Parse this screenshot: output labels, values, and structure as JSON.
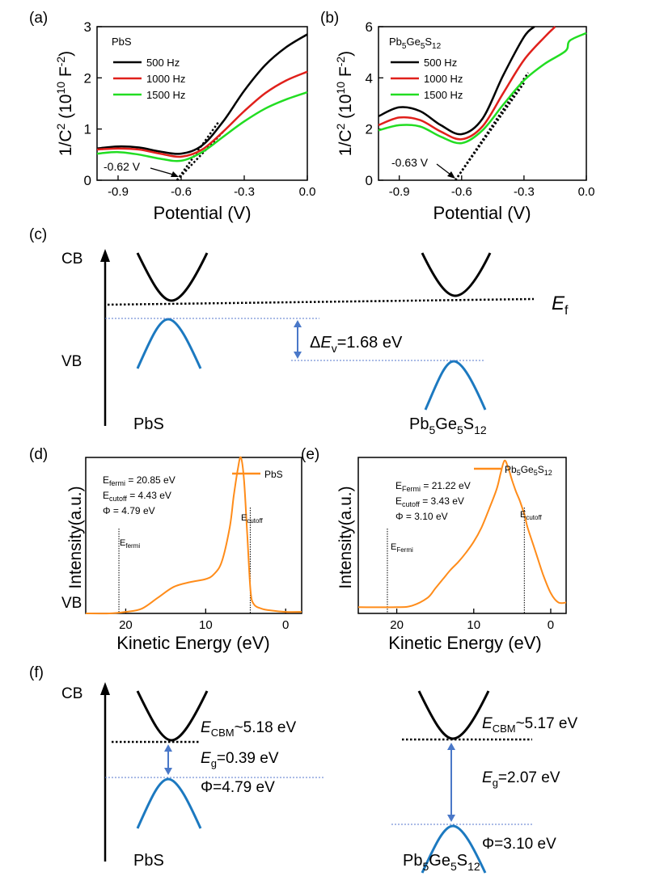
{
  "colors": {
    "c500": "#000000",
    "c1000": "#e0201b",
    "c1500": "#22dd22",
    "band_vb": "#1c79c0",
    "arrow": "#4a78c8",
    "guide": "#5577cc",
    "ups": "#ff8c1a"
  },
  "panels": {
    "a": {
      "tag": "(a)",
      "material": "PbS",
      "annotation": "-0.62 V"
    },
    "b": {
      "tag": "(b)",
      "annotation": "-0.63 V"
    },
    "c": {
      "tag": "(c)"
    },
    "d": {
      "tag": "(d)",
      "legend": "PbS"
    },
    "e": {
      "tag": "(e)"
    },
    "f": {
      "tag": "(f)"
    }
  },
  "mott_axes": {
    "ylabel": "1/C² (10¹⁰ F⁻²)",
    "xlabel": "Potential (V)",
    "legend": [
      "500 Hz",
      "1000 Hz",
      "1500 Hz"
    ]
  },
  "ups_axes": {
    "ylabel": "Intensity(a.u.)",
    "xlabel": "Kinetic Energy (eV)"
  },
  "band_c": {
    "cb": "CB",
    "vb": "VB",
    "left_material": "PbS",
    "right_material_note": "Pb5Ge5S12",
    "dEv_value": "=1.68 eV"
  },
  "band_f": {
    "cb": "CB",
    "vb": "VB",
    "left": {
      "material": "PbS",
      "ecbm": "~5.18 eV",
      "eg": "=0.39 eV",
      "phi": "Φ=4.79 eV"
    },
    "right": {
      "ecbm": "~5.17 eV",
      "eg": "=2.07 eV",
      "phi": "Φ=3.10 eV"
    }
  },
  "ups_text": {
    "d": {
      "efermi": " = 20.85 eV",
      "ecutoff": " = 4.43 eV",
      "phi": "Φ = 4.79 eV"
    },
    "e": {
      "efermi": " = 21.22 eV",
      "ecutoff": " = 3.43 eV",
      "phi": "Φ = 3.10 eV"
    }
  },
  "chart_data": [
    {
      "panel": "a",
      "type": "line",
      "xlabel": "Potential (V)",
      "ylabel": "1/C2 (10^10 F^-2)",
      "xlim": [
        -1.0,
        0.0
      ],
      "ylim": [
        0,
        3
      ],
      "xticks": [
        -0.9,
        -0.6,
        -0.3,
        0.0
      ],
      "yticks": [
        0,
        1,
        2,
        3
      ],
      "annotation": "-0.62 V",
      "series": [
        {
          "name": "500 Hz",
          "x": [
            -1.0,
            -0.9,
            -0.8,
            -0.7,
            -0.6,
            -0.5,
            -0.4,
            -0.3,
            -0.2,
            -0.1,
            0.0
          ],
          "y": [
            0.62,
            0.66,
            0.64,
            0.56,
            0.52,
            0.68,
            1.15,
            1.75,
            2.25,
            2.6,
            2.85
          ]
        },
        {
          "name": "1000 Hz",
          "x": [
            -1.0,
            -0.9,
            -0.8,
            -0.7,
            -0.6,
            -0.5,
            -0.4,
            -0.3,
            -0.2,
            -0.1,
            0.0
          ],
          "y": [
            0.6,
            0.62,
            0.6,
            0.52,
            0.46,
            0.6,
            0.95,
            1.35,
            1.7,
            1.95,
            2.12
          ]
        },
        {
          "name": "1500 Hz",
          "x": [
            -1.0,
            -0.9,
            -0.8,
            -0.7,
            -0.6,
            -0.5,
            -0.4,
            -0.3,
            -0.2,
            -0.1,
            0.0
          ],
          "y": [
            0.52,
            0.55,
            0.5,
            0.42,
            0.38,
            0.55,
            0.85,
            1.15,
            1.4,
            1.58,
            1.72
          ]
        }
      ],
      "fits": [
        {
          "x": [
            -0.62,
            -0.42
          ],
          "y": [
            0,
            1.15
          ]
        },
        {
          "x": [
            -0.62,
            -0.4
          ],
          "y": [
            0,
            0.95
          ]
        }
      ]
    },
    {
      "panel": "b",
      "type": "line",
      "xlabel": "Potential (V)",
      "ylabel": "1/C2 (10^10 F^-2)",
      "xlim": [
        -1.0,
        0.0
      ],
      "ylim": [
        0,
        6
      ],
      "xticks": [
        -0.9,
        -0.6,
        -0.3,
        0.0
      ],
      "yticks": [
        0,
        2,
        4,
        6
      ],
      "annotation": "-0.63 V",
      "series": [
        {
          "name": "500 Hz",
          "x": [
            -1.0,
            -0.9,
            -0.8,
            -0.7,
            -0.6,
            -0.5,
            -0.4,
            -0.3,
            -0.25
          ],
          "y": [
            2.5,
            2.85,
            2.7,
            2.15,
            1.8,
            2.4,
            4.1,
            5.6,
            6.0
          ]
        },
        {
          "name": "1000 Hz",
          "x": [
            -1.0,
            -0.9,
            -0.8,
            -0.7,
            -0.6,
            -0.5,
            -0.4,
            -0.3,
            -0.2,
            -0.15
          ],
          "y": [
            2.15,
            2.45,
            2.35,
            1.9,
            1.6,
            2.1,
            3.4,
            4.7,
            5.6,
            6.0
          ]
        },
        {
          "name": "1500 Hz",
          "x": [
            -1.0,
            -0.9,
            -0.8,
            -0.7,
            -0.6,
            -0.5,
            -0.4,
            -0.3,
            -0.2,
            -0.1,
            -0.08,
            0.0
          ],
          "y": [
            1.95,
            2.15,
            2.1,
            1.7,
            1.45,
            1.95,
            2.95,
            3.9,
            4.55,
            5.05,
            5.45,
            5.75
          ]
        }
      ],
      "fits": [
        {
          "x": [
            -0.63,
            -0.28
          ],
          "y": [
            0,
            4.2
          ]
        },
        {
          "x": [
            -0.63,
            -0.3
          ],
          "y": [
            0,
            3.8
          ]
        }
      ]
    },
    {
      "panel": "d",
      "type": "line",
      "xlabel": "Kinetic Energy (eV)",
      "ylabel": "Intensity(a.u.)",
      "xlim": [
        25,
        -2
      ],
      "xticks": [
        20,
        10,
        0
      ],
      "ylim": [
        0,
        1
      ],
      "series": [
        {
          "name": "PbS",
          "x": [
            25,
            22,
            20,
            18,
            16,
            14,
            12,
            10,
            9,
            8,
            7,
            6.5,
            6,
            5.6,
            5.2,
            4.8,
            4.4,
            4,
            3,
            2,
            0,
            -2
          ],
          "y": [
            0.0,
            0.0,
            0.01,
            0.03,
            0.1,
            0.17,
            0.2,
            0.22,
            0.25,
            0.33,
            0.55,
            0.75,
            0.92,
            1.0,
            0.85,
            0.5,
            0.15,
            0.06,
            0.03,
            0.02,
            0.01,
            0.01
          ]
        }
      ],
      "markers": [
        {
          "x": 20.85,
          "label": "E_fermi"
        },
        {
          "x": 4.43,
          "label": "E_cutoff"
        }
      ]
    },
    {
      "panel": "e",
      "type": "line",
      "xlabel": "Kinetic Energy (eV)",
      "ylabel": "Intensity(a.u.)",
      "xlim": [
        25,
        -2
      ],
      "xticks": [
        20,
        10,
        0
      ],
      "ylim": [
        0,
        1
      ],
      "series": [
        {
          "name": "Pb5Ge5S12",
          "x": [
            25,
            20,
            18,
            16,
            15,
            14,
            13,
            12,
            11,
            10,
            9,
            8,
            7,
            6.5,
            6,
            5.5,
            5,
            4.5,
            4,
            3.4,
            3,
            2,
            1,
            0,
            -1,
            -2
          ],
          "y": [
            0.04,
            0.04,
            0.05,
            0.1,
            0.16,
            0.22,
            0.28,
            0.33,
            0.39,
            0.46,
            0.55,
            0.67,
            0.8,
            0.9,
            0.98,
            0.93,
            0.85,
            0.78,
            0.72,
            0.63,
            0.55,
            0.4,
            0.25,
            0.13,
            0.07,
            0.07
          ]
        }
      ],
      "markers": [
        {
          "x": 21.22,
          "label": "E_Fermi"
        },
        {
          "x": 3.43,
          "label": "E_cutoff"
        }
      ]
    }
  ]
}
